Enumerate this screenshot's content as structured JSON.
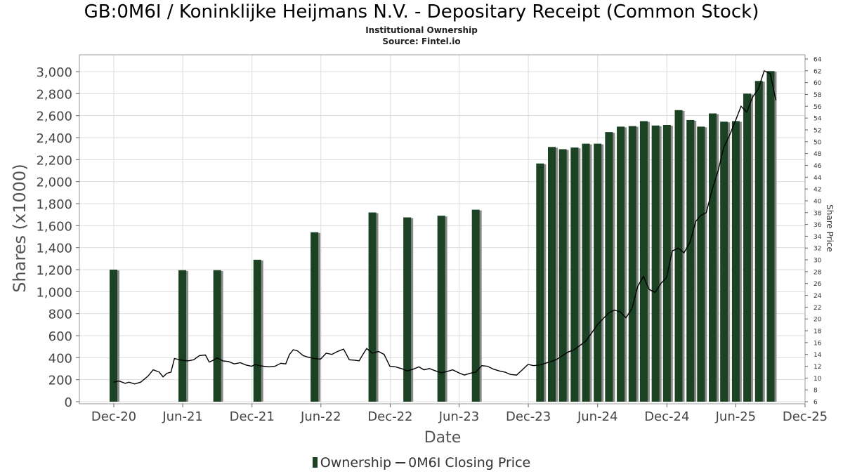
{
  "header": {
    "title": "GB:0M6I / Koninklijke Heijmans N.V. - Depositary Receipt (Common Stock)",
    "subtitle1": "Institutional Ownership",
    "subtitle2": "Source: Fintel.io"
  },
  "legend": {
    "ownership_label": "Ownership",
    "price_label": "0M6I Closing Price"
  },
  "colors": {
    "bar": "#1a4223",
    "bar_shadow": "#8a8a8a",
    "price_line": "#000000",
    "grid": "#dddddd"
  },
  "chart_data": {
    "type": "bar",
    "xlabel": "Date",
    "ylabel": "Shares (x1000)",
    "y2label": "Share Price",
    "x_ticks": [
      "Dec-20",
      "Jun-21",
      "Dec-21",
      "Jun-22",
      "Dec-22",
      "Jun-23",
      "Dec-23",
      "Jun-24",
      "Dec-24",
      "Jun-25",
      "Dec-25"
    ],
    "xlim": [
      "2020-09",
      "2025-12"
    ],
    "ylim": [
      0,
      3000
    ],
    "y_ticks": [
      0,
      200,
      400,
      600,
      800,
      1000,
      1200,
      1400,
      1600,
      1800,
      2000,
      2200,
      2400,
      2600,
      2800,
      3000
    ],
    "y2lim": [
      6,
      64
    ],
    "y2_ticks": [
      6,
      8,
      10,
      12,
      14,
      16,
      18,
      20,
      22,
      24,
      26,
      28,
      30,
      32,
      34,
      36,
      38,
      40,
      42,
      44,
      46,
      48,
      50,
      52,
      54,
      56,
      58,
      60,
      62,
      64
    ],
    "grid": true,
    "legend_position": "bottom-center",
    "series": [
      {
        "name": "Ownership",
        "type": "bar",
        "axis": "left",
        "points": [
          {
            "x": "2020-11-30",
            "y": 1200
          },
          {
            "x": "2021-05-31",
            "y": 1195
          },
          {
            "x": "2021-08-31",
            "y": 1195
          },
          {
            "x": "2021-12-15",
            "y": 1290
          },
          {
            "x": "2022-05-15",
            "y": 1540
          },
          {
            "x": "2022-10-15",
            "y": 1720
          },
          {
            "x": "2023-01-15",
            "y": 1675
          },
          {
            "x": "2023-04-15",
            "y": 1690
          },
          {
            "x": "2023-07-15",
            "y": 1745
          },
          {
            "x": "2024-01-01",
            "y": 2165
          },
          {
            "x": "2024-02-01",
            "y": 2315
          },
          {
            "x": "2024-03-01",
            "y": 2295
          },
          {
            "x": "2024-04-01",
            "y": 2310
          },
          {
            "x": "2024-05-01",
            "y": 2345
          },
          {
            "x": "2024-06-01",
            "y": 2345
          },
          {
            "x": "2024-07-01",
            "y": 2450
          },
          {
            "x": "2024-08-01",
            "y": 2500
          },
          {
            "x": "2024-09-01",
            "y": 2505
          },
          {
            "x": "2024-10-01",
            "y": 2550
          },
          {
            "x": "2024-11-01",
            "y": 2510
          },
          {
            "x": "2024-12-01",
            "y": 2515
          },
          {
            "x": "2025-01-01",
            "y": 2650
          },
          {
            "x": "2025-02-01",
            "y": 2560
          },
          {
            "x": "2025-03-01",
            "y": 2500
          },
          {
            "x": "2025-04-01",
            "y": 2620
          },
          {
            "x": "2025-05-01",
            "y": 2545
          },
          {
            "x": "2025-06-01",
            "y": 2550
          },
          {
            "x": "2025-07-01",
            "y": 2800
          },
          {
            "x": "2025-08-01",
            "y": 2915
          },
          {
            "x": "2025-09-01",
            "y": 3005
          }
        ]
      },
      {
        "name": "0M6I Closing Price",
        "type": "line",
        "axis": "right",
        "points": [
          {
            "x": "2020-11-30",
            "y": 9.3
          },
          {
            "x": "2020-12-15",
            "y": 9.5
          },
          {
            "x": "2020-12-31",
            "y": 9.1
          },
          {
            "x": "2021-01-10",
            "y": 9.3
          },
          {
            "x": "2021-01-25",
            "y": 9.0
          },
          {
            "x": "2021-02-10",
            "y": 9.3
          },
          {
            "x": "2021-03-01",
            "y": 10.3
          },
          {
            "x": "2021-03-15",
            "y": 11.4
          },
          {
            "x": "2021-03-31",
            "y": 11.0
          },
          {
            "x": "2021-04-10",
            "y": 10.2
          },
          {
            "x": "2021-04-20",
            "y": 10.8
          },
          {
            "x": "2021-05-01",
            "y": 11.0
          },
          {
            "x": "2021-05-10",
            "y": 13.3
          },
          {
            "x": "2021-05-31",
            "y": 13.0
          },
          {
            "x": "2021-06-15",
            "y": 12.9
          },
          {
            "x": "2021-06-30",
            "y": 13.1
          },
          {
            "x": "2021-07-15",
            "y": 13.8
          },
          {
            "x": "2021-07-31",
            "y": 13.9
          },
          {
            "x": "2021-08-10",
            "y": 12.7
          },
          {
            "x": "2021-08-20",
            "y": 13.0
          },
          {
            "x": "2021-08-31",
            "y": 13.4
          },
          {
            "x": "2021-09-15",
            "y": 12.9
          },
          {
            "x": "2021-09-30",
            "y": 12.8
          },
          {
            "x": "2021-10-15",
            "y": 12.4
          },
          {
            "x": "2021-10-31",
            "y": 12.6
          },
          {
            "x": "2021-11-15",
            "y": 12.2
          },
          {
            "x": "2021-11-30",
            "y": 12.0
          },
          {
            "x": "2021-12-10",
            "y": 12.3
          },
          {
            "x": "2021-12-20",
            "y": 12.1
          },
          {
            "x": "2021-12-31",
            "y": 12.0
          },
          {
            "x": "2022-01-15",
            "y": 11.9
          },
          {
            "x": "2022-01-31",
            "y": 12.0
          },
          {
            "x": "2022-02-15",
            "y": 12.5
          },
          {
            "x": "2022-02-28",
            "y": 12.4
          },
          {
            "x": "2022-03-10",
            "y": 14.0
          },
          {
            "x": "2022-03-20",
            "y": 14.8
          },
          {
            "x": "2022-03-31",
            "y": 14.6
          },
          {
            "x": "2022-04-15",
            "y": 13.8
          },
          {
            "x": "2022-04-30",
            "y": 13.5
          },
          {
            "x": "2022-05-15",
            "y": 13.3
          },
          {
            "x": "2022-05-31",
            "y": 13.2
          },
          {
            "x": "2022-06-15",
            "y": 14.2
          },
          {
            "x": "2022-06-30",
            "y": 14.0
          },
          {
            "x": "2022-07-15",
            "y": 14.5
          },
          {
            "x": "2022-07-31",
            "y": 14.9
          },
          {
            "x": "2022-08-15",
            "y": 13.1
          },
          {
            "x": "2022-08-31",
            "y": 13.0
          },
          {
            "x": "2022-09-10",
            "y": 12.9
          },
          {
            "x": "2022-09-20",
            "y": 14.0
          },
          {
            "x": "2022-09-30",
            "y": 15.0
          },
          {
            "x": "2022-10-15",
            "y": 14.2
          },
          {
            "x": "2022-10-31",
            "y": 14.5
          },
          {
            "x": "2022-11-15",
            "y": 14.0
          },
          {
            "x": "2022-11-30",
            "y": 12.0
          },
          {
            "x": "2022-12-15",
            "y": 11.9
          },
          {
            "x": "2022-12-31",
            "y": 11.6
          },
          {
            "x": "2023-01-15",
            "y": 11.2
          },
          {
            "x": "2023-01-31",
            "y": 11.5
          },
          {
            "x": "2023-02-15",
            "y": 11.9
          },
          {
            "x": "2023-02-28",
            "y": 11.4
          },
          {
            "x": "2023-03-15",
            "y": 11.6
          },
          {
            "x": "2023-03-31",
            "y": 11.2
          },
          {
            "x": "2023-04-15",
            "y": 10.9
          },
          {
            "x": "2023-04-30",
            "y": 11.1
          },
          {
            "x": "2023-05-15",
            "y": 11.4
          },
          {
            "x": "2023-05-31",
            "y": 10.9
          },
          {
            "x": "2023-06-15",
            "y": 10.5
          },
          {
            "x": "2023-06-30",
            "y": 10.8
          },
          {
            "x": "2023-07-15",
            "y": 11.0
          },
          {
            "x": "2023-07-31",
            "y": 12.1
          },
          {
            "x": "2023-08-15",
            "y": 12.0
          },
          {
            "x": "2023-08-31",
            "y": 11.5
          },
          {
            "x": "2023-09-15",
            "y": 11.2
          },
          {
            "x": "2023-09-30",
            "y": 11.0
          },
          {
            "x": "2023-10-15",
            "y": 10.6
          },
          {
            "x": "2023-10-31",
            "y": 10.5
          },
          {
            "x": "2023-11-15",
            "y": 11.4
          },
          {
            "x": "2023-11-30",
            "y": 12.3
          },
          {
            "x": "2023-12-15",
            "y": 12.1
          },
          {
            "x": "2023-12-31",
            "y": 12.2
          },
          {
            "x": "2024-01-15",
            "y": 12.5
          },
          {
            "x": "2024-01-31",
            "y": 12.8
          },
          {
            "x": "2024-02-15",
            "y": 13.2
          },
          {
            "x": "2024-02-29",
            "y": 13.8
          },
          {
            "x": "2024-03-15",
            "y": 14.4
          },
          {
            "x": "2024-03-31",
            "y": 14.8
          },
          {
            "x": "2024-04-15",
            "y": 15.5
          },
          {
            "x": "2024-04-30",
            "y": 16.2
          },
          {
            "x": "2024-05-15",
            "y": 17.5
          },
          {
            "x": "2024-05-31",
            "y": 19.0
          },
          {
            "x": "2024-06-15",
            "y": 20.0
          },
          {
            "x": "2024-06-30",
            "y": 21.0
          },
          {
            "x": "2024-07-15",
            "y": 21.5
          },
          {
            "x": "2024-07-31",
            "y": 21.2
          },
          {
            "x": "2024-08-15",
            "y": 20.2
          },
          {
            "x": "2024-08-31",
            "y": 21.8
          },
          {
            "x": "2024-09-15",
            "y": 25.5
          },
          {
            "x": "2024-09-30",
            "y": 27.2
          },
          {
            "x": "2024-10-15",
            "y": 25.0
          },
          {
            "x": "2024-10-31",
            "y": 24.5
          },
          {
            "x": "2024-11-15",
            "y": 26.0
          },
          {
            "x": "2024-11-30",
            "y": 27.0
          },
          {
            "x": "2024-12-15",
            "y": 31.5
          },
          {
            "x": "2024-12-31",
            "y": 32.0
          },
          {
            "x": "2025-01-15",
            "y": 31.2
          },
          {
            "x": "2025-01-31",
            "y": 33.0
          },
          {
            "x": "2025-02-15",
            "y": 36.5
          },
          {
            "x": "2025-02-28",
            "y": 37.5
          },
          {
            "x": "2025-03-15",
            "y": 38.0
          },
          {
            "x": "2025-03-31",
            "y": 42.0
          },
          {
            "x": "2025-04-15",
            "y": 45.0
          },
          {
            "x": "2025-04-30",
            "y": 49.0
          },
          {
            "x": "2025-05-15",
            "y": 51.0
          },
          {
            "x": "2025-05-31",
            "y": 53.5
          },
          {
            "x": "2025-06-15",
            "y": 56.0
          },
          {
            "x": "2025-06-30",
            "y": 55.0
          },
          {
            "x": "2025-07-15",
            "y": 57.5
          },
          {
            "x": "2025-07-31",
            "y": 59.0
          },
          {
            "x": "2025-08-15",
            "y": 62.0
          },
          {
            "x": "2025-08-31",
            "y": 61.5
          },
          {
            "x": "2025-09-15",
            "y": 57.0
          }
        ]
      }
    ]
  }
}
